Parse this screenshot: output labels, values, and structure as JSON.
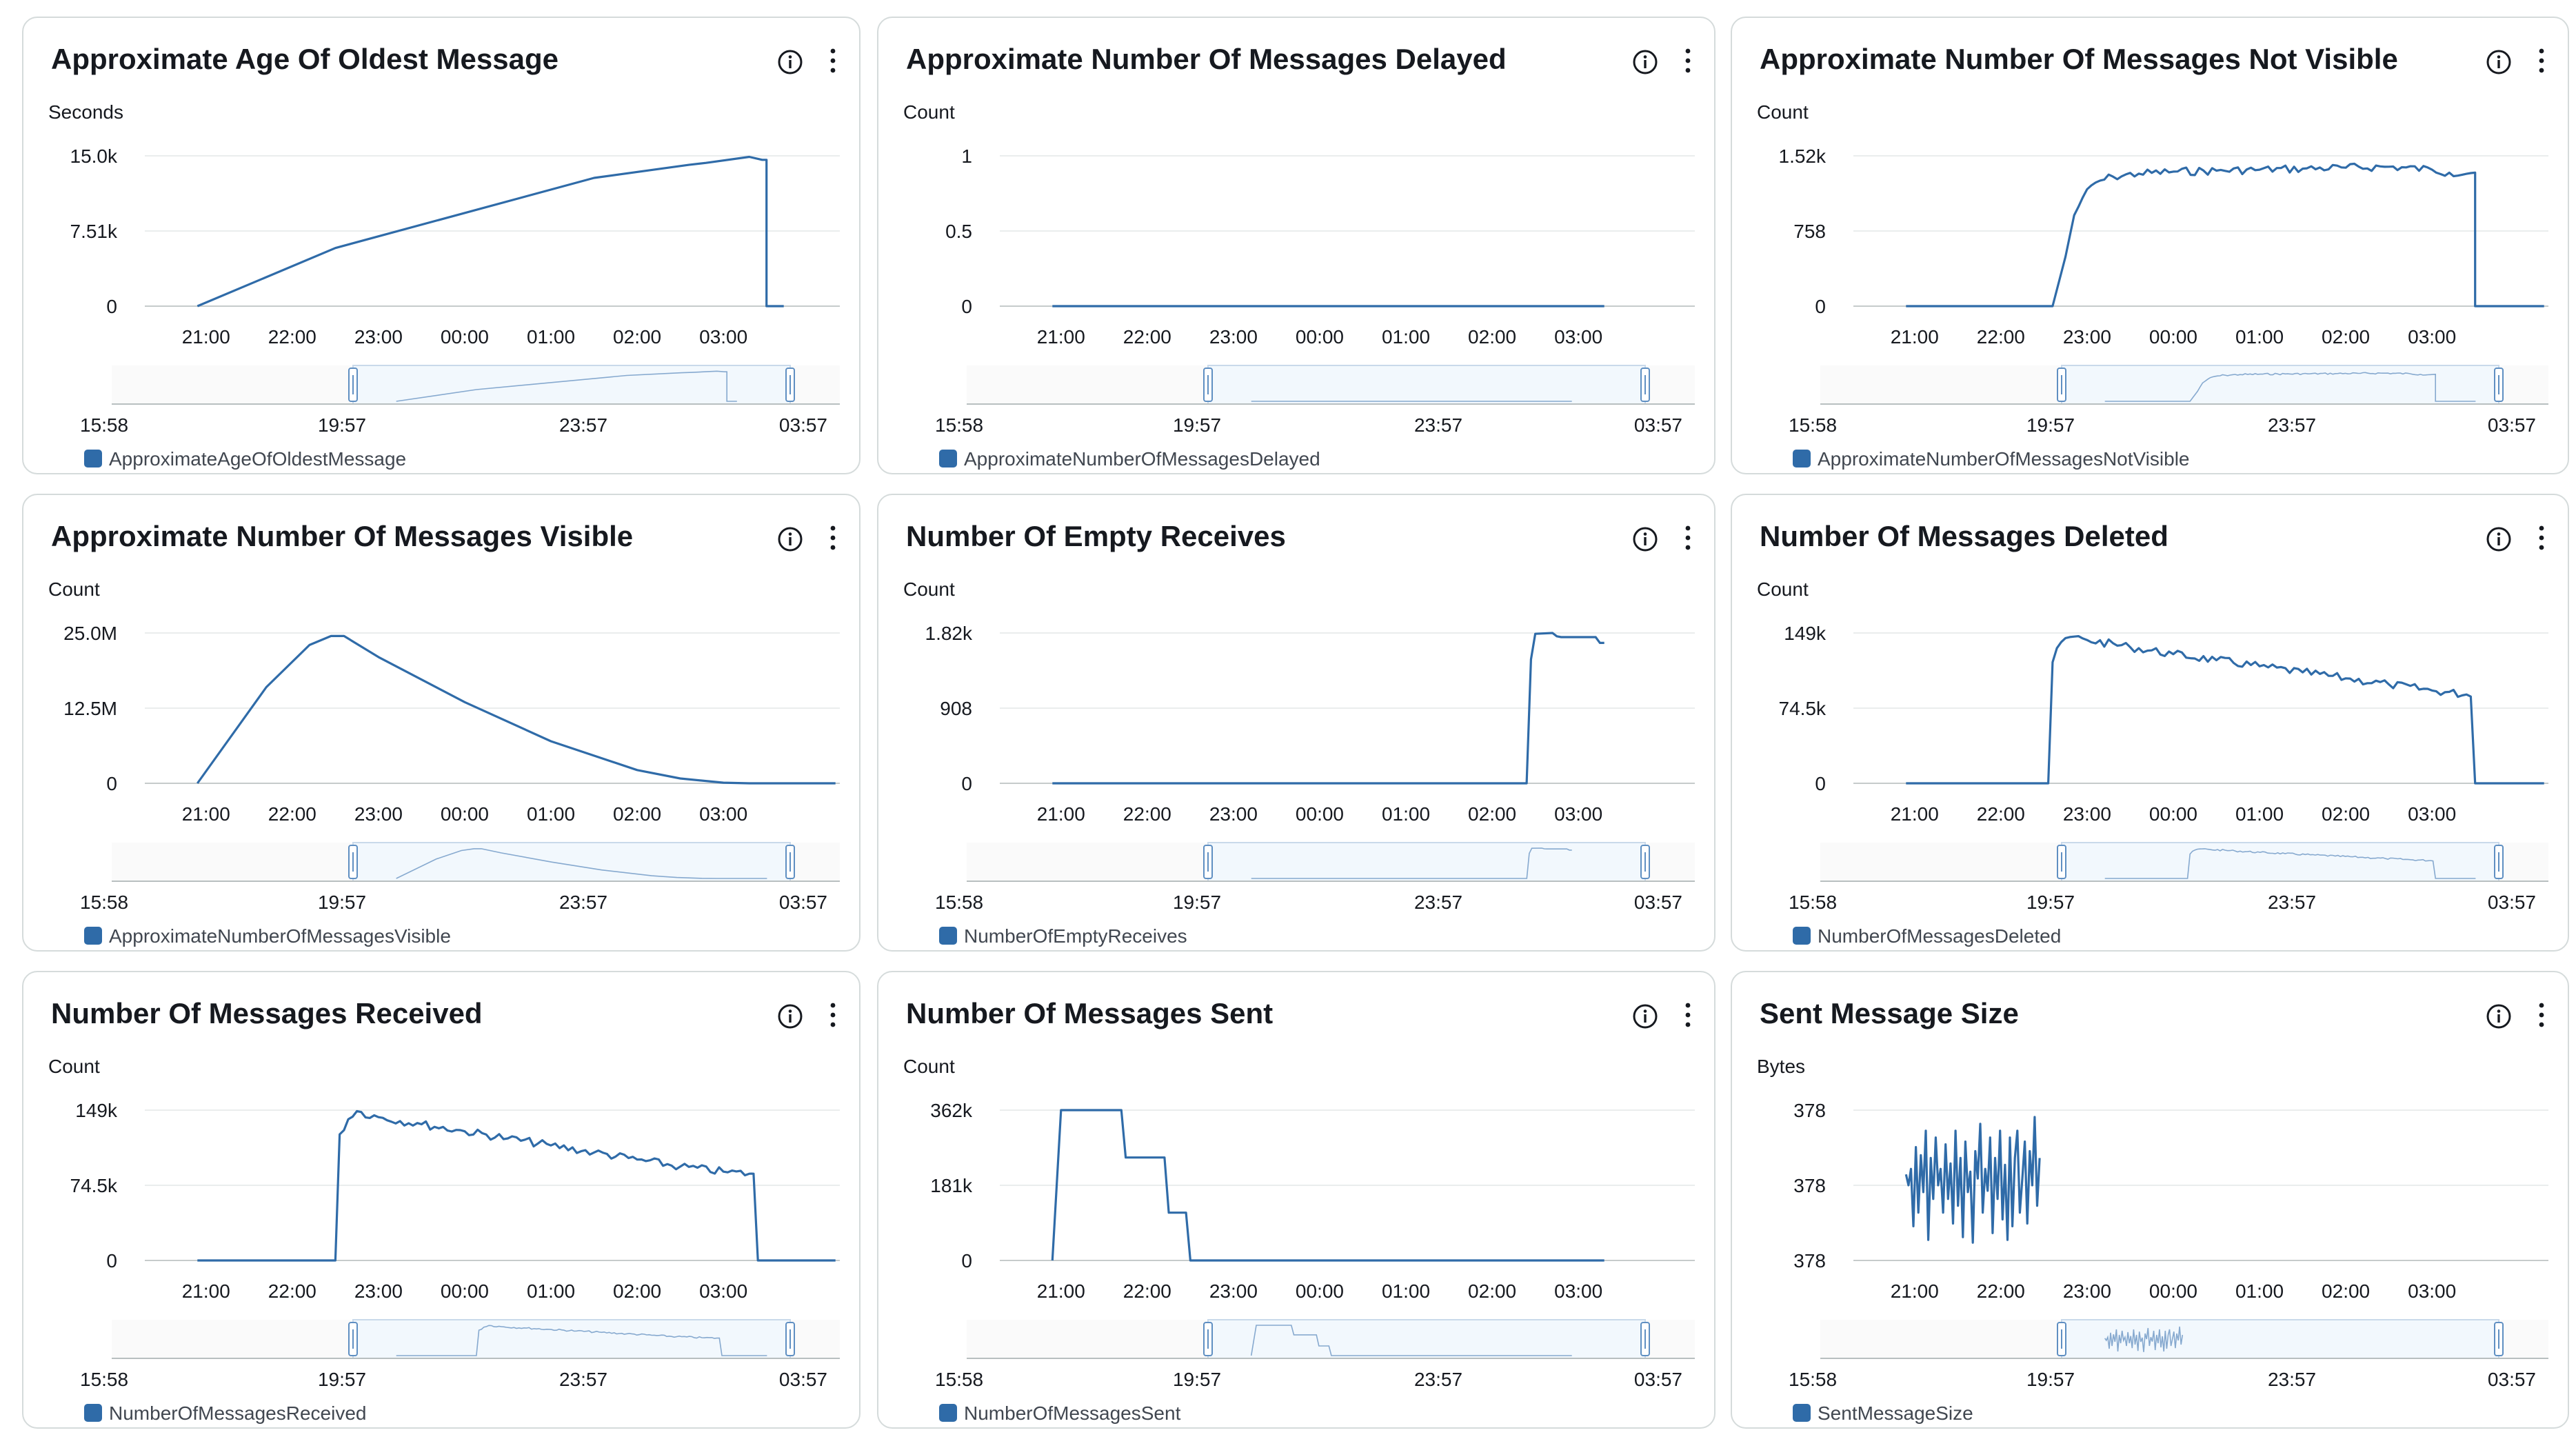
{
  "colors": {
    "series": "#2f6ba8",
    "grid": "#eaeded",
    "axis": "#879596",
    "nav_bg": "#f2f8fd",
    "nav_handle": "#5f8fc2",
    "widget_border": "#d5dbdb"
  },
  "widgets": [
    {
      "title": "Approximate Age Of Oldest Message",
      "unit": "Seconds",
      "y_ticks": [
        "15.0k",
        "7.51k",
        "0"
      ],
      "x_ticks": [
        "21:00",
        "22:00",
        "23:00",
        "00:00",
        "01:00",
        "02:00",
        "03:00"
      ],
      "nav_ticks": [
        "15:58",
        "19:57",
        "23:57",
        "03:57"
      ],
      "legend": "ApproximateAgeOfOldestMessage",
      "icons": {
        "info": "info-icon",
        "menu": "more-vertical-icon"
      },
      "chart_data": {
        "type": "line",
        "ylim": [
          0,
          15000
        ],
        "x": [
          20.9,
          22.5,
          25.5,
          26.6,
          26.8,
          27.3,
          27.45,
          27.5,
          27.5,
          27.7
        ],
        "values": [
          0,
          5800,
          12800,
          14100,
          14300,
          14900,
          14600,
          14600,
          0,
          0
        ]
      }
    },
    {
      "title": "Approximate Number Of Messages Delayed",
      "unit": "Count",
      "y_ticks": [
        "1",
        "0.5",
        "0"
      ],
      "x_ticks": [
        "21:00",
        "22:00",
        "23:00",
        "00:00",
        "01:00",
        "02:00",
        "03:00"
      ],
      "nav_ticks": [
        "15:58",
        "19:57",
        "23:57",
        "03:57"
      ],
      "legend": "ApproximateNumberOfMessagesDelayed",
      "icons": {
        "info": "info-icon",
        "menu": "more-vertical-icon"
      },
      "chart_data": {
        "type": "line",
        "ylim": [
          0,
          1
        ],
        "x": [
          20.9,
          27.3
        ],
        "values": [
          0,
          0
        ]
      }
    },
    {
      "title": "Approximate Number Of Messages Not Visible",
      "unit": "Count",
      "y_ticks": [
        "1.52k",
        "758",
        "0"
      ],
      "x_ticks": [
        "21:00",
        "22:00",
        "23:00",
        "00:00",
        "01:00",
        "02:00",
        "03:00"
      ],
      "nav_ticks": [
        "15:58",
        "19:57",
        "23:57",
        "03:57"
      ],
      "legend": "ApproximateNumberOfMessagesNotVisible",
      "icons": {
        "info": "info-icon",
        "menu": "more-vertical-icon"
      },
      "chart_data": {
        "type": "line",
        "ylim": [
          0,
          1520
        ],
        "x": [
          20.9,
          22.6,
          22.75,
          22.85,
          22.95,
          23.1,
          23.3,
          23.6,
          24.0,
          24.5,
          25.0,
          25.5,
          26.0,
          26.5,
          27.0,
          27.2,
          27.5,
          27.5,
          28.3
        ],
        "values": [
          0,
          0,
          500,
          920,
          1100,
          1250,
          1310,
          1340,
          1360,
          1370,
          1380,
          1390,
          1400,
          1410,
          1380,
          1350,
          1350,
          0,
          0
        ],
        "note_shape": "noisy plateau"
      }
    },
    {
      "title": "Approximate Number Of Messages Visible",
      "unit": "Count",
      "y_ticks": [
        "25.0M",
        "12.5M",
        "0"
      ],
      "x_ticks": [
        "21:00",
        "22:00",
        "23:00",
        "00:00",
        "01:00",
        "02:00",
        "03:00"
      ],
      "nav_ticks": [
        "15:58",
        "19:57",
        "23:57",
        "03:57"
      ],
      "legend": "ApproximateNumberOfMessagesVisible",
      "icons": {
        "info": "info-icon",
        "menu": "more-vertical-icon"
      },
      "chart_data": {
        "type": "line",
        "ylim": [
          0,
          25000000
        ],
        "x": [
          20.9,
          21.7,
          22.2,
          22.45,
          22.6,
          23.0,
          24.0,
          25.0,
          26.0,
          26.5,
          27.0,
          27.3,
          28.3
        ],
        "values": [
          0,
          16000000,
          23000000,
          24500000,
          24500000,
          21000000,
          13500000,
          7000000,
          2200000,
          800000,
          100000,
          0,
          0
        ]
      }
    },
    {
      "title": "Number Of Empty Receives",
      "unit": "Count",
      "y_ticks": [
        "1.82k",
        "908",
        "0"
      ],
      "x_ticks": [
        "21:00",
        "22:00",
        "23:00",
        "00:00",
        "01:00",
        "02:00",
        "03:00"
      ],
      "nav_ticks": [
        "15:58",
        "19:57",
        "23:57",
        "03:57"
      ],
      "legend": "NumberOfEmptyReceives",
      "icons": {
        "info": "info-icon",
        "menu": "more-vertical-icon"
      },
      "chart_data": {
        "type": "line",
        "ylim": [
          0,
          1820
        ],
        "x": [
          20.9,
          26.4,
          26.45,
          26.5,
          26.7,
          26.75,
          26.8,
          27.2,
          27.25,
          27.3
        ],
        "values": [
          0,
          0,
          1500,
          1810,
          1820,
          1780,
          1770,
          1770,
          1700,
          1700
        ]
      }
    },
    {
      "title": "Number Of Messages Deleted",
      "unit": "Count",
      "y_ticks": [
        "149k",
        "74.5k",
        "0"
      ],
      "x_ticks": [
        "21:00",
        "22:00",
        "23:00",
        "00:00",
        "01:00",
        "02:00",
        "03:00"
      ],
      "nav_ticks": [
        "15:58",
        "19:57",
        "23:57",
        "03:57"
      ],
      "legend": "NumberOfMessagesDeleted",
      "icons": {
        "info": "info-icon",
        "menu": "more-vertical-icon"
      },
      "chart_data": {
        "type": "line",
        "ylim": [
          0,
          149000
        ],
        "x": [
          20.9,
          22.55,
          22.6,
          22.7,
          22.8,
          23.0,
          23.5,
          24.0,
          24.5,
          25.0,
          25.5,
          26.0,
          26.5,
          27.0,
          27.4,
          27.45,
          27.5,
          28.3
        ],
        "values": [
          0,
          0,
          120000,
          140000,
          145000,
          142000,
          135000,
          128000,
          122000,
          116000,
          110000,
          104000,
          98000,
          92000,
          88000,
          86000,
          0,
          0
        ],
        "note_shape": "noisy decline"
      }
    },
    {
      "title": "Number Of Messages Received",
      "unit": "Count",
      "y_ticks": [
        "149k",
        "74.5k",
        "0"
      ],
      "x_ticks": [
        "21:00",
        "22:00",
        "23:00",
        "00:00",
        "01:00",
        "02:00",
        "03:00"
      ],
      "nav_ticks": [
        "15:58",
        "19:57",
        "23:57",
        "03:57"
      ],
      "legend": "NumberOfMessagesReceived",
      "icons": {
        "info": "info-icon",
        "menu": "more-vertical-icon"
      },
      "chart_data": {
        "type": "line",
        "ylim": [
          0,
          149000
        ],
        "x": [
          20.9,
          22.5,
          22.55,
          22.65,
          22.75,
          23.0,
          23.5,
          24.0,
          24.5,
          25.0,
          25.5,
          26.0,
          26.5,
          27.0,
          27.3,
          27.35,
          27.4,
          28.3
        ],
        "values": [
          0,
          0,
          125000,
          140000,
          148000,
          142000,
          135000,
          128000,
          121000,
          114000,
          107000,
          100000,
          93000,
          88000,
          86000,
          86000,
          0,
          0
        ],
        "note_shape": "noisy decline"
      }
    },
    {
      "title": "Number Of Messages Sent",
      "unit": "Count",
      "y_ticks": [
        "362k",
        "181k",
        "0"
      ],
      "x_ticks": [
        "21:00",
        "22:00",
        "23:00",
        "00:00",
        "01:00",
        "02:00",
        "03:00"
      ],
      "nav_ticks": [
        "15:58",
        "19:57",
        "23:57",
        "03:57"
      ],
      "legend": "NumberOfMessagesSent",
      "icons": {
        "info": "info-icon",
        "menu": "more-vertical-icon"
      },
      "chart_data": {
        "type": "line",
        "ylim": [
          0,
          362000
        ],
        "x": [
          20.9,
          21.0,
          21.7,
          21.75,
          22.2,
          22.25,
          22.45,
          22.5,
          27.3
        ],
        "values": [
          0,
          362000,
          362000,
          248000,
          248000,
          115000,
          115000,
          0,
          0
        ]
      }
    },
    {
      "title": "Sent Message Size",
      "unit": "Bytes",
      "y_ticks": [
        "378",
        "378",
        "378"
      ],
      "x_ticks": [
        "21:00",
        "22:00",
        "23:00",
        "00:00",
        "01:00",
        "02:00",
        "03:00"
      ],
      "nav_ticks": [
        "15:58",
        "19:57",
        "23:57",
        "03:57"
      ],
      "legend": "SentMessageSize",
      "icons": {
        "info": "info-icon",
        "menu": "more-vertical-icon"
      },
      "chart_data": {
        "type": "line",
        "ylim": [
          0,
          1
        ],
        "x_range": [
          20.9,
          22.45
        ],
        "values_normalized": [
          0.58,
          0.5,
          0.62,
          0.2,
          0.78,
          0.3,
          0.72,
          0.45,
          0.9,
          0.1,
          0.7,
          0.4,
          0.85,
          0.5,
          0.62,
          0.3,
          0.8,
          0.4,
          0.66,
          0.22,
          0.9,
          0.35,
          0.7,
          0.12,
          0.82,
          0.45,
          0.6,
          0.08,
          0.75,
          0.55,
          0.95,
          0.3,
          0.62,
          0.46,
          0.85,
          0.15,
          0.7,
          0.4,
          0.9,
          0.25,
          0.65,
          0.1,
          0.85,
          0.2,
          0.7,
          0.9,
          0.3,
          0.55,
          0.82,
          0.22,
          0.75,
          0.5,
          1.0,
          0.35,
          0.7
        ]
      }
    }
  ]
}
